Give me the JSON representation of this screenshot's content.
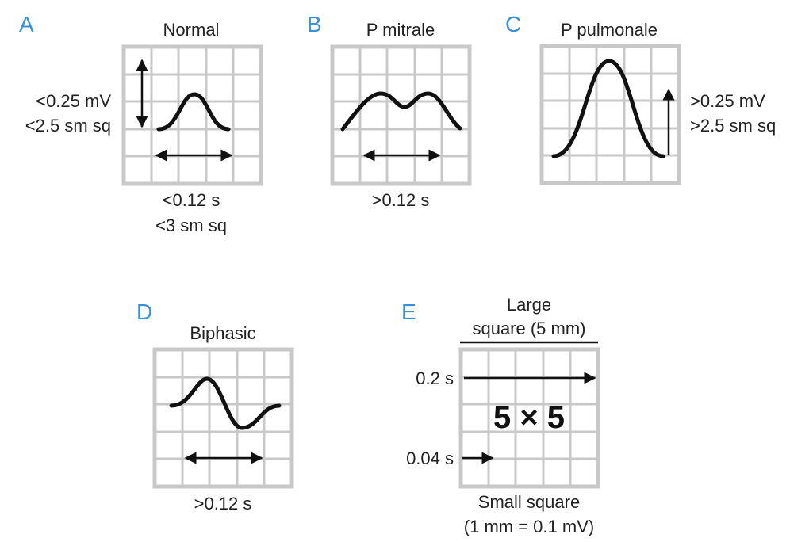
{
  "panels": {
    "a": {
      "letter": "A",
      "title": "Normal",
      "amp_line1": "<0.25 mV",
      "amp_line2": "<2.5 sm sq",
      "dur_line1": "<0.12 s",
      "dur_line2": "<3 sm sq"
    },
    "b": {
      "letter": "B",
      "title": "P mitrale",
      "dur_line1": ">0.12 s"
    },
    "c": {
      "letter": "C",
      "title": "P pulmonale",
      "amp_line1": ">0.25 mV",
      "amp_line2": ">2.5 sm sq"
    },
    "d": {
      "letter": "D",
      "title": "Biphasic",
      "dur_line1": ">0.12 s"
    },
    "e": {
      "letter": "E",
      "title_line1": "Large",
      "title_line2": "square (5 mm)",
      "large_time": "0.2 s",
      "center": "5 × 5",
      "small_time": "0.04 s",
      "footer_line1": "Small square",
      "footer_line2": "(1 mm = 0.1 mV)"
    }
  },
  "colors": {
    "letter": "#3a8fd9",
    "grid": "#c8c8c8",
    "ink": "#111111"
  }
}
